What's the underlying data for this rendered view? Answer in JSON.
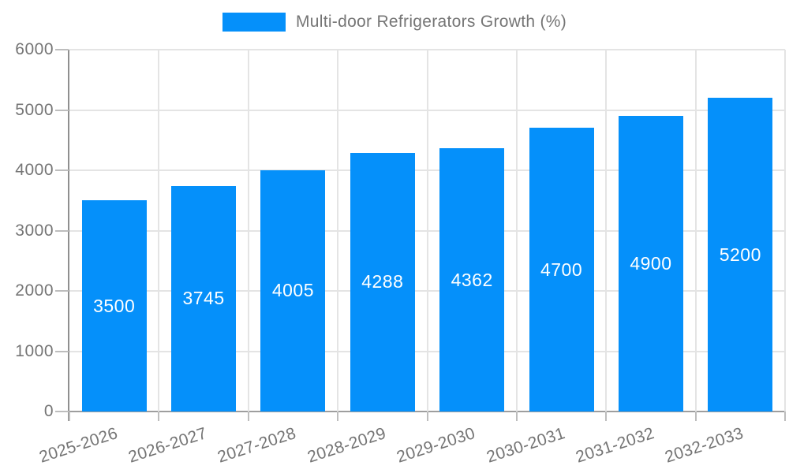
{
  "page": {
    "background": "#ffffff"
  },
  "legend": {
    "position": "top",
    "entries": [
      {
        "label": "Multi-door Refrigerators Growth (%)",
        "color": "#0590fa"
      }
    ]
  },
  "chart_data": {
    "type": "bar",
    "title": "Multi-door Refrigerators Growth (%)",
    "categories": [
      "2025-2026",
      "2026-2027",
      "2027-2028",
      "2028-2029",
      "2029-2030",
      "2030-2031",
      "2031-2032",
      "2032-2033"
    ],
    "values": [
      3500,
      3745,
      4005,
      4288,
      4362,
      4700,
      4900,
      5200
    ],
    "value_labels_shown": true,
    "xlabel": "",
    "ylabel": "",
    "ylim": [
      0,
      6000
    ],
    "yticks": [
      0,
      1000,
      2000,
      3000,
      4000,
      5000,
      6000
    ],
    "grid": true,
    "legend_position": "top",
    "x_label_rotation_deg": -18,
    "colors": {
      "bar": "#0590fa",
      "value_label": "#ffffff",
      "axis": "#9e9e9e",
      "gridline": "#e4e4e4",
      "tick": "#bdbdbd",
      "tick_label": "#757575",
      "legend_text": "#757575",
      "background": "#ffffff"
    }
  }
}
